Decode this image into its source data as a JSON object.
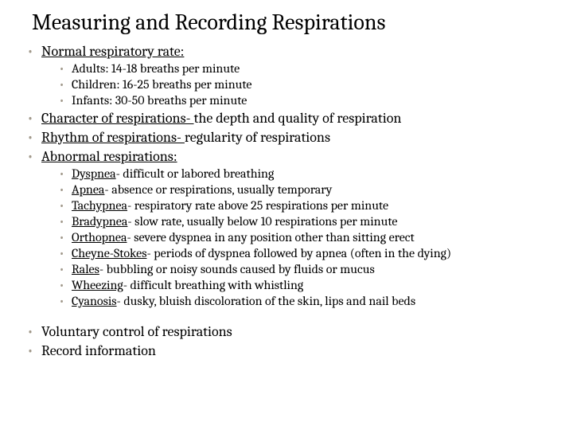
{
  "title": "Measuring and Recording Respirations",
  "bullets": {
    "head1": {
      "u": "Normal respiratory rate:"
    },
    "sub1a": "Adults: 14-18 breaths per minute",
    "sub1b": "Children: 16-25 breaths per minute",
    "sub1c": "Infants: 30-50 breaths per minute",
    "head2": {
      "u": "Character of respirations- ",
      "rest": "the depth and quality of respiration"
    },
    "head3": {
      "u": "Rhythm of respirations- ",
      "rest": "regularity of respirations"
    },
    "head4": {
      "u": "Abnormal respirations:"
    },
    "sub4a": {
      "u": "Dyspnea",
      "rest": "- difficult or labored breathing"
    },
    "sub4b": {
      "u": "Apnea",
      "rest": "- absence or respirations, usually temporary"
    },
    "sub4c": {
      "u": "Tachypnea",
      "rest": "- respiratory rate above 25 respirations per minute"
    },
    "sub4d": {
      "u": "Bradypnea",
      "rest": "- slow rate, usually below 10 respirations per minute"
    },
    "sub4e": {
      "u": "Orthopnea",
      "rest": "- severe dyspnea in any position other than sitting erect"
    },
    "sub4f": {
      "u": "Cheyne-Stokes",
      "rest": "- periods of dyspnea followed by apnea (often in the dying)"
    },
    "sub4g": {
      "u": "Rales",
      "rest": "- bubbling or noisy sounds caused by fluids or mucus"
    },
    "sub4h": {
      "u": "Wheezing",
      "rest": "- difficult breathing with whistling"
    },
    "sub4i": {
      "u": "Cyanosis",
      "rest": "- dusky, bluish discoloration of the skin, lips and nail beds"
    },
    "head5": "Voluntary control of respirations",
    "head6": "Record information"
  }
}
